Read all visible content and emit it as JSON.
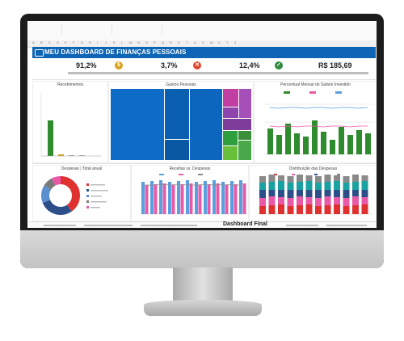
{
  "dashboard": {
    "title": "MEU DASHBOARD DE FINANÇAS PESSOAIS"
  },
  "kpis": [
    {
      "value": "91,2%",
      "icon": "coin-icon",
      "color": "#d9a21b"
    },
    {
      "value": "3,7%",
      "icon": "x-icon",
      "color": "#e0462f"
    },
    {
      "value": "12,4%",
      "icon": "check-icon",
      "color": "#2f8a3e"
    },
    {
      "value": "R$ 185,69"
    }
  ],
  "panels": {
    "recebimentos": {
      "title": "Recebimentos"
    },
    "gastos": {
      "title": "Gastos Pessoais"
    },
    "percentual": {
      "title": "Percentual Mensal do Salário Investido"
    },
    "despesas_total": {
      "title": "Despesas | Total anual"
    },
    "receitas_vs": {
      "title": "Receitas vs. Despesas"
    },
    "distribuicao": {
      "title": "Distribuição das Despesas"
    }
  },
  "sheet_tab": "Dashboard Final",
  "colors": {
    "brand_blue": "#0e64b5",
    "green": "#2e8b2e",
    "purple": "#8e44ad",
    "pink": "#e85aa7",
    "red": "#e03131",
    "teal": "#1aa1a1"
  }
}
